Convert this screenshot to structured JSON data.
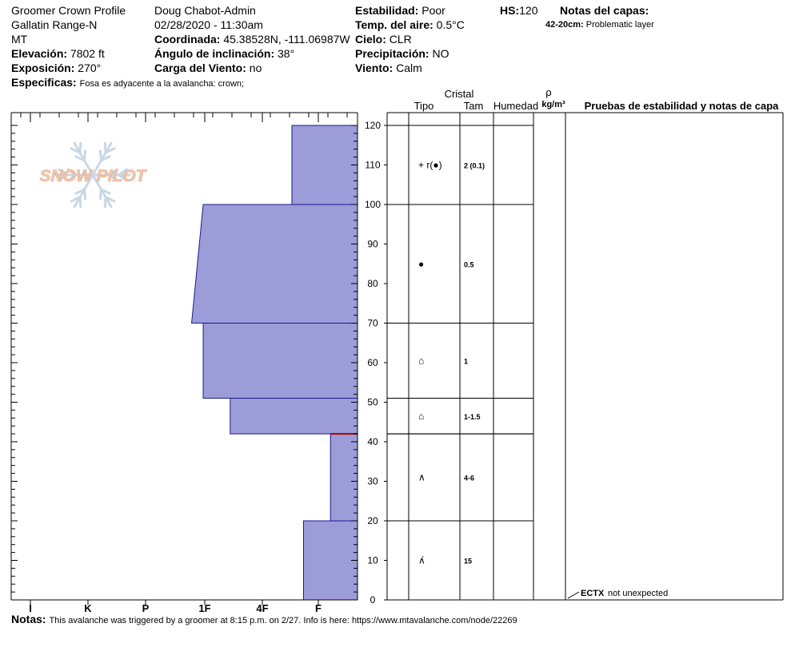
{
  "header": {
    "col1": {
      "title": "Groomer Crown Profile",
      "range": "Gallatin Range-N",
      "state": "MT",
      "elevation_label": "Elevación:",
      "elevation_value": "7802 ft",
      "aspect_label": "Exposición:",
      "aspect_value": "270°",
      "specifics_label": "Especificas:",
      "specifics_value": "Fosa es adyacente a la avalancha: crown;"
    },
    "col2": {
      "observer": "Doug Chabot-Admin",
      "datetime": "02/28/2020 - 11:30am",
      "coord_label": "Coordinada:",
      "coord_value": "45.38528N, -111.06987W",
      "slope_label": "Ángulo de inclinación:",
      "slope_value": "38°",
      "wind_load_label": "Carga del Viento:",
      "wind_load_value": "no"
    },
    "col3": {
      "stability_label": "Estabilidad:",
      "stability_value": "Poor",
      "air_temp_label": "Temp. del aire:",
      "air_temp_value": "0.5°C",
      "sky_label": "Cielo:",
      "sky_value": "CLR",
      "precip_label": "Precipitación:",
      "precip_value": "NO",
      "wind_label": "Viento:",
      "wind_value": "Calm"
    },
    "col4": {
      "hs_label": "HS:",
      "hs_value": "120",
      "layer_notes_label": "Notas del capas:",
      "layer_note_range": "42-20cm:",
      "layer_note_text": "Problematic layer"
    }
  },
  "footer": {
    "notes_label": "Notas:",
    "notes_text": "This avalanche was triggered by a groomer at 8:15 p.m. on 2/27. Info is here: https://www.mtavalanche.com/node/22269"
  },
  "logo_text": "SNOW PILOT",
  "colors": {
    "layer_fill": "#9c9cd8",
    "layer_stroke": "#1a1a8c",
    "problem_line": "#b00000",
    "logo_orange": "#f2c8b0",
    "logo_blue": "#c8d8e6"
  },
  "columns": {
    "cristal": "Cristal",
    "tipo": "Tipo",
    "tam": "Tam",
    "humedad": "Humedad",
    "rho": "ρ",
    "density_unit": "kg/m³",
    "tests_title": "Pruebas de estabilidad y notas de capa"
  },
  "chart_data": {
    "type": "snow_profile",
    "y_axis": {
      "min": 0,
      "max": 120,
      "major_step": 10,
      "minor_step": 2
    },
    "hardness_scale": [
      "I",
      "K",
      "P",
      "1F",
      "4F",
      "F"
    ],
    "hardness_layers": [
      {
        "top": 120,
        "bottom": 100,
        "hardness_top": "1F+",
        "hardness_bottom": "1F+",
        "value_top": 1.7,
        "value_bottom": 1.7
      },
      {
        "top": 100,
        "bottom": 70,
        "hardness_top": "4F",
        "hardness_bottom": "4F+",
        "value_top": 4.0,
        "value_bottom": 4.3
      },
      {
        "top": 70,
        "bottom": 51,
        "hardness_top": "4F",
        "hardness_bottom": "4F",
        "value_top": 4.0,
        "value_bottom": 4.0
      },
      {
        "top": 51,
        "bottom": 42,
        "hardness_top": "1F+",
        "hardness_bottom": "1F+",
        "value_top": 3.3,
        "value_bottom": 3.3
      },
      {
        "top": 42,
        "bottom": 20,
        "hardness_top": "F",
        "hardness_bottom": "F",
        "value_top": 0.7,
        "value_bottom": 0.7
      },
      {
        "top": 20,
        "bottom": 0,
        "hardness_top": "F+",
        "hardness_bottom": "F+",
        "value_top": 1.4,
        "value_bottom": 1.4
      }
    ],
    "problem_layer_height": 42,
    "crystal_layers": [
      {
        "top": 120,
        "bottom": 100,
        "symbol": "+ r(●)",
        "size": "2 (0.1)"
      },
      {
        "top": 100,
        "bottom": 70,
        "symbol": "●",
        "size": "0.5"
      },
      {
        "top": 70,
        "bottom": 51,
        "symbol": "⌂",
        "size": "1"
      },
      {
        "top": 51,
        "bottom": 42,
        "symbol": "⌂",
        "size": "1-1.5"
      },
      {
        "top": 42,
        "bottom": 20,
        "symbol": "∧",
        "size": "4-6"
      },
      {
        "top": 20,
        "bottom": 0,
        "symbol": "∧̇",
        "size": "15"
      }
    ],
    "tests": [
      {
        "height": 0,
        "code": "ECTX",
        "note": "not unexpected"
      }
    ]
  }
}
